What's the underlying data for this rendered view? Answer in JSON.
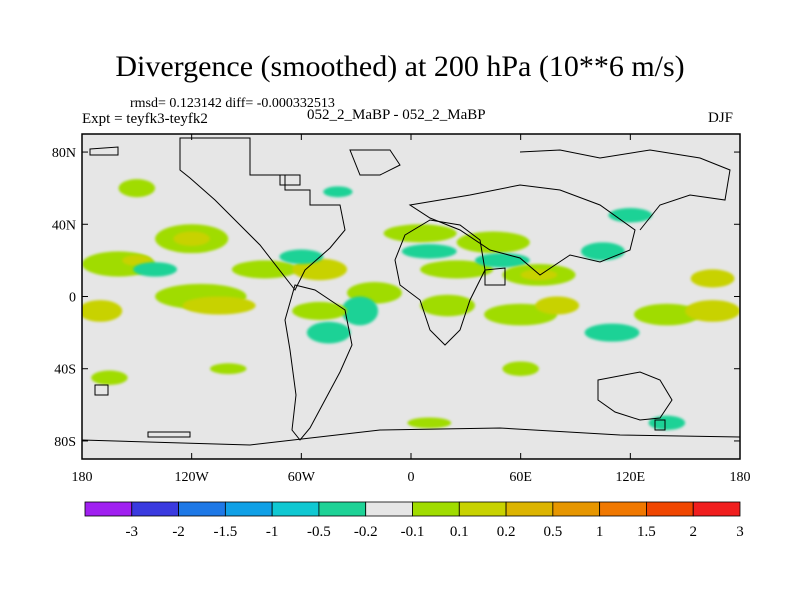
{
  "header": {
    "title": "Divergence (smoothed) at 200 hPa (10**6 m/s)",
    "stats": "rmsd= 0.123142 diff= -0.000332513",
    "experiment": "Expt = teyfk3-teyfk2",
    "period": "052_2_MaBP - 052_2_MaBP",
    "season": "DJF"
  },
  "chart_data": {
    "type": "heatmap",
    "title": "Divergence (smoothed) at 200 hPa (10**6 m/s)",
    "xlabel": "",
    "ylabel": "",
    "x_ticks": [
      {
        "value": -180,
        "label": "180"
      },
      {
        "value": -120,
        "label": "120W"
      },
      {
        "value": -60,
        "label": "60W"
      },
      {
        "value": 0,
        "label": "0"
      },
      {
        "value": 60,
        "label": "60E"
      },
      {
        "value": 120,
        "label": "120E"
      },
      {
        "value": 180,
        "label": "180"
      }
    ],
    "y_ticks": [
      {
        "value": 80,
        "label": "80N"
      },
      {
        "value": 40,
        "label": "40N"
      },
      {
        "value": 0,
        "label": "0"
      },
      {
        "value": -40,
        "label": "40S"
      },
      {
        "value": -80,
        "label": "80S"
      }
    ],
    "xlim": [
      -180,
      180
    ],
    "ylim": [
      -90,
      90
    ],
    "colorbar": {
      "labels": [
        "-3",
        "-2",
        "-1.5",
        "-1",
        "-0.5",
        "-0.2",
        "-0.1",
        "0.1",
        "0.2",
        "0.5",
        "1",
        "1.5",
        "2",
        "3"
      ],
      "colors": [
        "#a020f0",
        "#3a3adf",
        "#1e78e6",
        "#10a0e6",
        "#10c8d2",
        "#1ed296",
        "#e6e6e6",
        "#a0dc00",
        "#c8d200",
        "#dcb400",
        "#e69600",
        "#f07800",
        "#f04600",
        "#f01e1e"
      ]
    },
    "blobs": [
      {
        "lon": -160,
        "lat": 18,
        "rx": 20,
        "ry": 7,
        "color": "#a0dc00"
      },
      {
        "lon": -150,
        "lat": 20,
        "rx": 8,
        "ry": 3,
        "color": "#c8d200"
      },
      {
        "lon": -170,
        "lat": -8,
        "rx": 12,
        "ry": 6,
        "color": "#c8d200"
      },
      {
        "lon": -120,
        "lat": 32,
        "rx": 20,
        "ry": 8,
        "color": "#a0dc00"
      },
      {
        "lon": -120,
        "lat": 32,
        "rx": 10,
        "ry": 4,
        "color": "#c8d200"
      },
      {
        "lon": -115,
        "lat": 0,
        "rx": 25,
        "ry": 7,
        "color": "#a0dc00"
      },
      {
        "lon": -105,
        "lat": -5,
        "rx": 20,
        "ry": 5,
        "color": "#c8d200"
      },
      {
        "lon": -80,
        "lat": 15,
        "rx": 18,
        "ry": 5,
        "color": "#a0dc00"
      },
      {
        "lon": -50,
        "lat": 15,
        "rx": 15,
        "ry": 6,
        "color": "#c8d200"
      },
      {
        "lon": -60,
        "lat": 22,
        "rx": 12,
        "ry": 4,
        "color": "#1ed296"
      },
      {
        "lon": -140,
        "lat": 15,
        "rx": 12,
        "ry": 4,
        "color": "#1ed296"
      },
      {
        "lon": -20,
        "lat": 2,
        "rx": 15,
        "ry": 6,
        "color": "#a0dc00"
      },
      {
        "lon": -28,
        "lat": -8,
        "rx": 10,
        "ry": 8,
        "color": "#1ed296"
      },
      {
        "lon": -50,
        "lat": -8,
        "rx": 15,
        "ry": 5,
        "color": "#a0dc00"
      },
      {
        "lon": -45,
        "lat": -20,
        "rx": 12,
        "ry": 6,
        "color": "#1ed296"
      },
      {
        "lon": 5,
        "lat": 35,
        "rx": 20,
        "ry": 5,
        "color": "#a0dc00"
      },
      {
        "lon": 10,
        "lat": 25,
        "rx": 15,
        "ry": 4,
        "color": "#1ed296"
      },
      {
        "lon": 25,
        "lat": 15,
        "rx": 20,
        "ry": 5,
        "color": "#a0dc00"
      },
      {
        "lon": 45,
        "lat": 30,
        "rx": 20,
        "ry": 6,
        "color": "#a0dc00"
      },
      {
        "lon": 50,
        "lat": 20,
        "rx": 15,
        "ry": 4,
        "color": "#1ed296"
      },
      {
        "lon": 70,
        "lat": 12,
        "rx": 20,
        "ry": 6,
        "color": "#a0dc00"
      },
      {
        "lon": 70,
        "lat": 12,
        "rx": 10,
        "ry": 3,
        "color": "#c8d200"
      },
      {
        "lon": 20,
        "lat": -5,
        "rx": 15,
        "ry": 6,
        "color": "#a0dc00"
      },
      {
        "lon": 60,
        "lat": -10,
        "rx": 20,
        "ry": 6,
        "color": "#a0dc00"
      },
      {
        "lon": 80,
        "lat": -5,
        "rx": 12,
        "ry": 5,
        "color": "#c8d200"
      },
      {
        "lon": 105,
        "lat": 25,
        "rx": 12,
        "ry": 5,
        "color": "#1ed296"
      },
      {
        "lon": 110,
        "lat": -20,
        "rx": 15,
        "ry": 5,
        "color": "#1ed296"
      },
      {
        "lon": 140,
        "lat": -10,
        "rx": 18,
        "ry": 6,
        "color": "#a0dc00"
      },
      {
        "lon": 165,
        "lat": 10,
        "rx": 12,
        "ry": 5,
        "color": "#c8d200"
      },
      {
        "lon": 165,
        "lat": -8,
        "rx": 15,
        "ry": 6,
        "color": "#c8d200"
      },
      {
        "lon": -150,
        "lat": 60,
        "rx": 10,
        "ry": 5,
        "color": "#a0dc00"
      },
      {
        "lon": -40,
        "lat": 58,
        "rx": 8,
        "ry": 3,
        "color": "#1ed296"
      },
      {
        "lon": 120,
        "lat": 45,
        "rx": 12,
        "ry": 4,
        "color": "#1ed296"
      },
      {
        "lon": -165,
        "lat": -45,
        "rx": 10,
        "ry": 4,
        "color": "#a0dc00"
      },
      {
        "lon": 60,
        "lat": -40,
        "rx": 10,
        "ry": 4,
        "color": "#a0dc00"
      },
      {
        "lon": -100,
        "lat": -40,
        "rx": 10,
        "ry": 3,
        "color": "#a0dc00"
      },
      {
        "lon": 10,
        "lat": -70,
        "rx": 12,
        "ry": 3,
        "color": "#a0dc00"
      },
      {
        "lon": 140,
        "lat": -70,
        "rx": 10,
        "ry": 4,
        "color": "#1ed296"
      }
    ]
  }
}
